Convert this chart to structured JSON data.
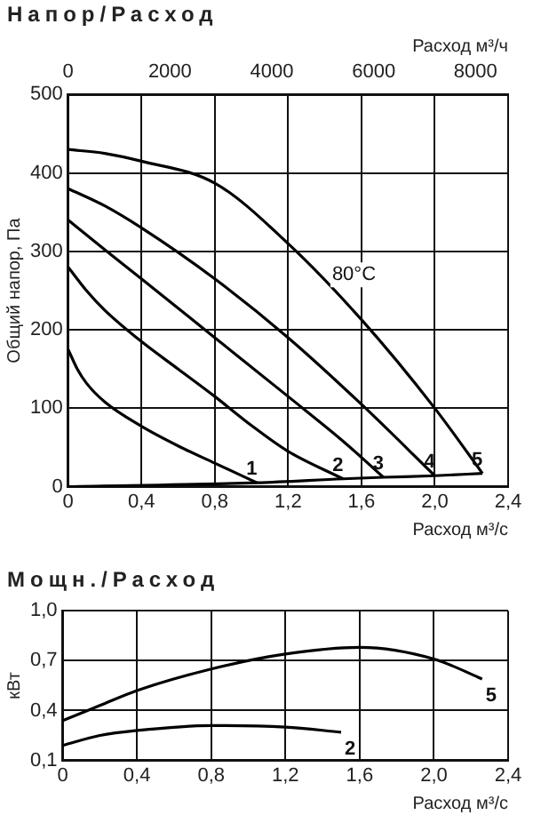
{
  "chart_data": [
    {
      "type": "line",
      "title": "Напор/Расход",
      "xlabel": "Расход м³/с",
      "ylabel": "Общий напор, Па",
      "x2label": "Расход м³/ч",
      "xlim": [
        0,
        2.4
      ],
      "xticks": [
        0,
        {
          "value": 0.4,
          "label": "0,4"
        },
        {
          "value": 0.8,
          "label": "0,8"
        },
        {
          "value": 1.2,
          "label": "1,2"
        },
        {
          "value": 1.6,
          "label": "1,6"
        },
        {
          "value": 2.0,
          "label": "2,0"
        },
        {
          "value": 2.4,
          "label": "2,4"
        }
      ],
      "x2lim": [
        0,
        8640
      ],
      "x2ticks": [
        0,
        2000,
        4000,
        6000,
        8000
      ],
      "ylim": [
        0,
        500
      ],
      "yticks": [
        0,
        100,
        200,
        300,
        400,
        500
      ],
      "grid": true,
      "legend": false,
      "annotations": [
        "80°C"
      ],
      "series": [
        {
          "name": "1",
          "color": "#000000",
          "x": [
            0,
            0.05,
            0.1,
            0.2,
            0.4,
            0.6,
            0.8,
            1.03
          ],
          "values": [
            175,
            150,
            132,
            108,
            77,
            52,
            30,
            5
          ]
        },
        {
          "name": "2",
          "color": "#000000",
          "x": [
            0,
            0.1,
            0.2,
            0.4,
            0.6,
            0.8,
            1.0,
            1.2,
            1.5
          ],
          "values": [
            280,
            250,
            225,
            185,
            150,
            115,
            78,
            45,
            10
          ]
        },
        {
          "name": "3",
          "color": "#000000",
          "x": [
            0,
            0.2,
            0.4,
            0.8,
            1.2,
            1.5,
            1.72
          ],
          "values": [
            340,
            302,
            265,
            190,
            115,
            58,
            12
          ]
        },
        {
          "name": "4",
          "color": "#000000",
          "x": [
            0,
            0.2,
            0.4,
            0.8,
            1.2,
            1.6,
            2.0
          ],
          "values": [
            380,
            358,
            330,
            265,
            190,
            105,
            14
          ]
        },
        {
          "name": "5",
          "color": "#000000",
          "x": [
            0,
            0.2,
            0.4,
            0.8,
            1.2,
            1.6,
            2.0,
            2.26
          ],
          "values": [
            430,
            425,
            415,
            387,
            310,
            213,
            100,
            17
          ]
        },
        {
          "color": "#000000",
          "x": [
            0,
            1.03,
            1.5,
            1.72,
            2.0,
            2.26
          ],
          "values": [
            0,
            5,
            10,
            12,
            14,
            17
          ]
        }
      ]
    },
    {
      "type": "line",
      "title": "Мощн./Расход",
      "xlabel": "Расход м³/с",
      "ylabel": "кВт",
      "xlim": [
        0,
        2.4
      ],
      "xticks": [
        0,
        {
          "value": 0.4,
          "label": "0,4"
        },
        {
          "value": 0.8,
          "label": "0,8"
        },
        {
          "value": 1.2,
          "label": "1,2"
        },
        {
          "value": 1.6,
          "label": "1,6"
        },
        {
          "value": 2.0,
          "label": "2,0"
        },
        {
          "value": 2.4,
          "label": "2,4"
        }
      ],
      "ylim": [
        0.1,
        1.0
      ],
      "yticks": [
        {
          "value": 0.1,
          "label": "0,1"
        },
        {
          "value": 0.4,
          "label": "0,4"
        },
        {
          "value": 0.7,
          "label": "0,7"
        },
        {
          "value": 1.0,
          "label": "1,0"
        }
      ],
      "grid": true,
      "legend": false,
      "series": [
        {
          "name": "5",
          "color": "#000000",
          "x": [
            0,
            0.2,
            0.4,
            0.8,
            1.2,
            1.6,
            2.0,
            2.26
          ],
          "values": [
            0.34,
            0.43,
            0.52,
            0.65,
            0.74,
            0.78,
            0.71,
            0.59
          ]
        },
        {
          "name": "2",
          "color": "#000000",
          "x": [
            0,
            0.2,
            0.4,
            0.8,
            1.2,
            1.5
          ],
          "values": [
            0.19,
            0.25,
            0.28,
            0.31,
            0.3,
            0.27
          ]
        }
      ]
    }
  ]
}
